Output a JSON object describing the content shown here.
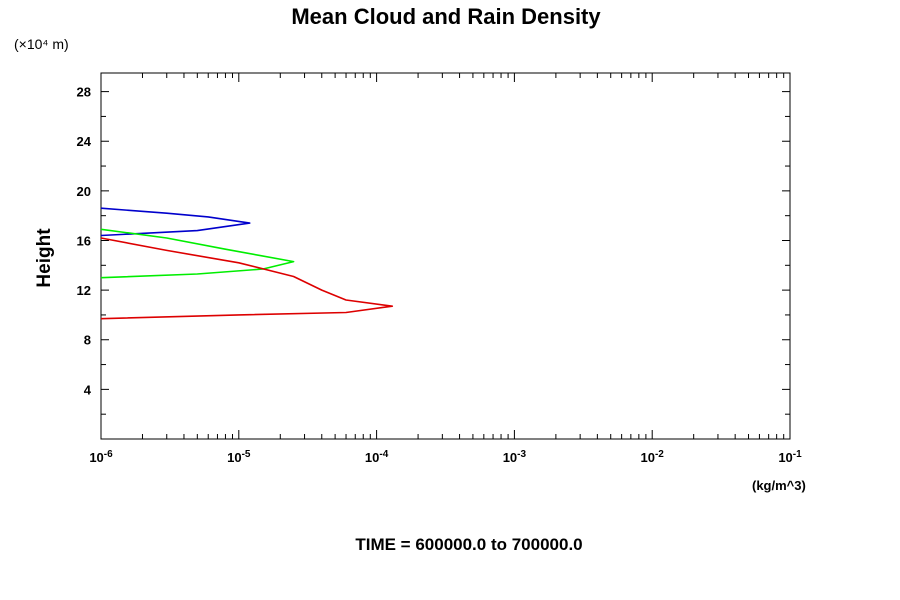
{
  "chart_data": {
    "type": "line",
    "title": "Mean Cloud and Rain Density",
    "ylabel": "Height",
    "y_scale_note": "(×10⁴ m)",
    "xlabel": "(kg/m^3)",
    "footer": "TIME = 600000.0 to 700000.0",
    "x_scale": "log",
    "xlim": [
      1e-06,
      0.1
    ],
    "ylim": [
      0,
      29.5
    ],
    "x_ticks": [
      {
        "value": 1e-06,
        "base": "10",
        "exp": "-6"
      },
      {
        "value": 1e-05,
        "base": "10",
        "exp": "-5"
      },
      {
        "value": 0.0001,
        "base": "10",
        "exp": "-4"
      },
      {
        "value": 0.001,
        "base": "10",
        "exp": "-3"
      },
      {
        "value": 0.01,
        "base": "10",
        "exp": "-2"
      },
      {
        "value": 0.1,
        "base": "10",
        "exp": "-1"
      }
    ],
    "y_ticks": [
      4,
      8,
      12,
      16,
      20,
      24,
      28
    ],
    "y_minor_step": 2,
    "grid": false,
    "series": [
      {
        "color": "#0000cc",
        "points": [
          [
            1e-06,
            18.6
          ],
          [
            3e-06,
            18.2
          ],
          [
            6e-06,
            17.9
          ],
          [
            1.2e-05,
            17.4
          ],
          [
            5e-06,
            16.8
          ],
          [
            1e-06,
            16.4
          ]
        ]
      },
      {
        "color": "#00ee00",
        "points": [
          [
            1e-06,
            16.9
          ],
          [
            3e-06,
            16.2
          ],
          [
            8e-06,
            15.3
          ],
          [
            2.5e-05,
            14.3
          ],
          [
            1.5e-05,
            13.7
          ],
          [
            5e-06,
            13.3
          ],
          [
            1e-06,
            13.0
          ]
        ]
      },
      {
        "color": "#dd0000",
        "points": [
          [
            1e-06,
            16.2
          ],
          [
            3e-06,
            15.2
          ],
          [
            1e-05,
            14.2
          ],
          [
            2.5e-05,
            13.1
          ],
          [
            4e-05,
            12.0
          ],
          [
            6e-05,
            11.2
          ],
          [
            0.00013,
            10.7
          ],
          [
            6e-05,
            10.2
          ],
          [
            1e-05,
            10.0
          ],
          [
            1e-06,
            9.7
          ]
        ]
      }
    ]
  }
}
